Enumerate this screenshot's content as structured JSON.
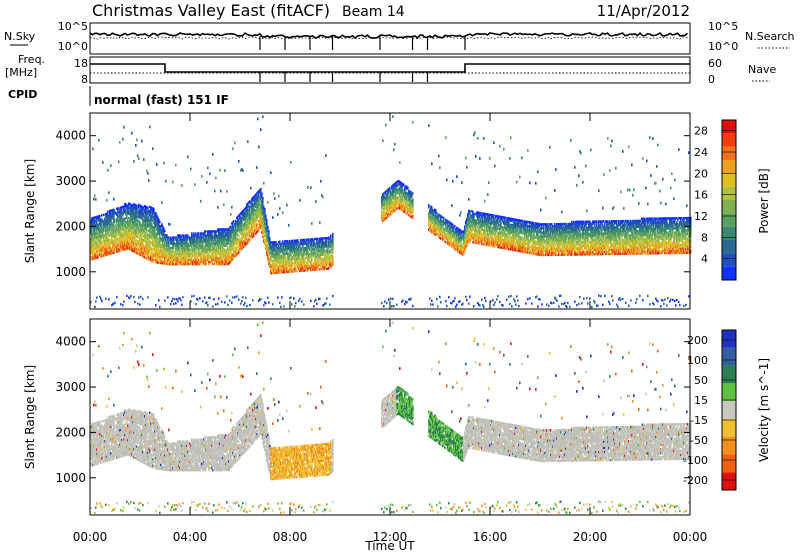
{
  "header": {
    "station": "Christmas Valley East (fitACF)",
    "beam": "Beam 14",
    "date": "11/Apr/2012"
  },
  "top_panels": {
    "nsky_label": "N.Sky",
    "nsearch_label": "N.Search",
    "freq_label_1": "Freq.",
    "freq_label_2": "[MHz]",
    "nave_label": "Nave",
    "cpid_label": "CPID",
    "cpid_text": "normal (fast) 151 IF",
    "nsky_ticks": [
      "10^5",
      "10^0"
    ],
    "nsearch_ticks": [
      "10^5",
      "10^0"
    ],
    "freq_ticks": [
      "18",
      "8"
    ],
    "nave_ticks": [
      "60",
      "0"
    ]
  },
  "chart_data": [
    {
      "type": "heatmap",
      "title": "",
      "xlabel": "Time UT",
      "ylabel": "Slant Range [km]",
      "colorbar_label": "Power [dB]",
      "x_ticks": [
        "00:00",
        "04:00",
        "08:00",
        "12:00",
        "16:00",
        "20:00",
        "00:00"
      ],
      "y_ticks": [
        1000,
        2000,
        3000,
        4000
      ],
      "xlim_hours": [
        0,
        24
      ],
      "ylim": [
        180,
        4500
      ],
      "colorbar_ticks": [
        4,
        8,
        12,
        16,
        20,
        24,
        28
      ],
      "colorbar_range": [
        0,
        30
      ],
      "colorbar_colors": [
        "#1030ff",
        "#2050c0",
        "#2a6a90",
        "#3a8a70",
        "#5aa060",
        "#80b050",
        "#b0c040",
        "#e0c020",
        "#f0a020",
        "#f07020",
        "#f04010",
        "#e01010"
      ],
      "echo_band_km": [
        {
          "t": 0.0,
          "center": 1700,
          "width": 900
        },
        {
          "t": 1.5,
          "center": 2000,
          "width": 1000
        },
        {
          "t": 2.5,
          "center": 1800,
          "width": 1200
        },
        {
          "t": 3.1,
          "center": 1450,
          "width": 600
        },
        {
          "t": 5.5,
          "center": 1550,
          "width": 800
        },
        {
          "t": 6.8,
          "center": 2400,
          "width": 900
        },
        {
          "t": 7.2,
          "center": 1300,
          "width": 700
        },
        {
          "t": 9.5,
          "center": 1400,
          "width": 700
        },
        {
          "t": 12.3,
          "center": 2700,
          "width": 600
        },
        {
          "t": 14.9,
          "center": 1600,
          "width": 500
        },
        {
          "t": 15.1,
          "center": 2000,
          "width": 700
        },
        {
          "t": 18.0,
          "center": 1700,
          "width": 700
        },
        {
          "t": 24.0,
          "center": 1800,
          "width": 800
        }
      ]
    },
    {
      "type": "heatmap",
      "title": "",
      "xlabel": "Time UT",
      "ylabel": "Slant Range [km]",
      "colorbar_label": "Velocity [m s^-1]",
      "x_ticks": [
        "00:00",
        "04:00",
        "08:00",
        "12:00",
        "16:00",
        "20:00",
        "00:00"
      ],
      "y_ticks": [
        1000,
        2000,
        3000,
        4000
      ],
      "xlim_hours": [
        0,
        24
      ],
      "ylim": [
        180,
        4500
      ],
      "colorbar_ticks": [
        200,
        100,
        50,
        15,
        -15,
        -50,
        -100,
        -200
      ],
      "colorbar_colors": [
        "#2030c0",
        "#3060a0",
        "#2a8050",
        "#60c040",
        "#c8c8c0",
        "#f0c030",
        "#f09020",
        "#f06010",
        "#e01010"
      ],
      "ground_scatter_color": "#c0c0b8"
    }
  ]
}
